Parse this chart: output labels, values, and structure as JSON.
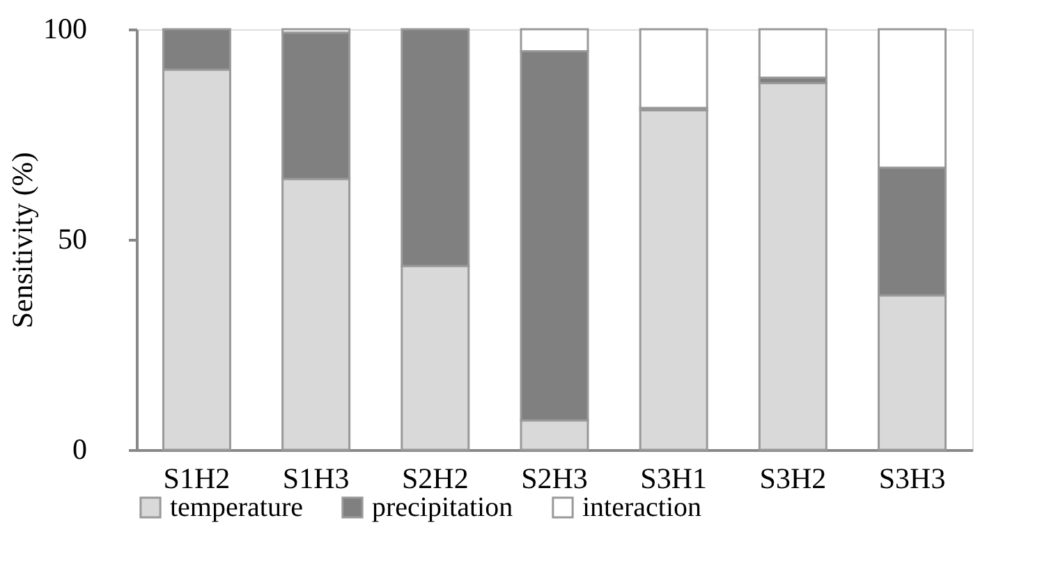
{
  "chart_data": {
    "type": "bar",
    "stacked": true,
    "ylabel": "Sensitivity (%)",
    "categories": [
      "S1H2",
      "S1H3",
      "S2H2",
      "S2H3",
      "S3H1",
      "S3H2",
      "S3H3"
    ],
    "series": [
      {
        "name": "temperature",
        "color": "#d9d9d9",
        "values": [
          90.4,
          64.4,
          43.7,
          7.0,
          80.7,
          87.2,
          36.7
        ]
      },
      {
        "name": "precipitation",
        "color": "#808080",
        "values": [
          9.6,
          34.8,
          56.3,
          87.8,
          0.6,
          1.3,
          30.4
        ]
      },
      {
        "name": "interaction",
        "color": "#ffffff",
        "values": [
          0,
          0.8,
          0,
          5.2,
          18.7,
          11.5,
          32.9
        ]
      }
    ],
    "ylim": [
      0,
      100
    ],
    "yticks": [
      0,
      50,
      100
    ],
    "grid": false,
    "legend": "bottom"
  }
}
